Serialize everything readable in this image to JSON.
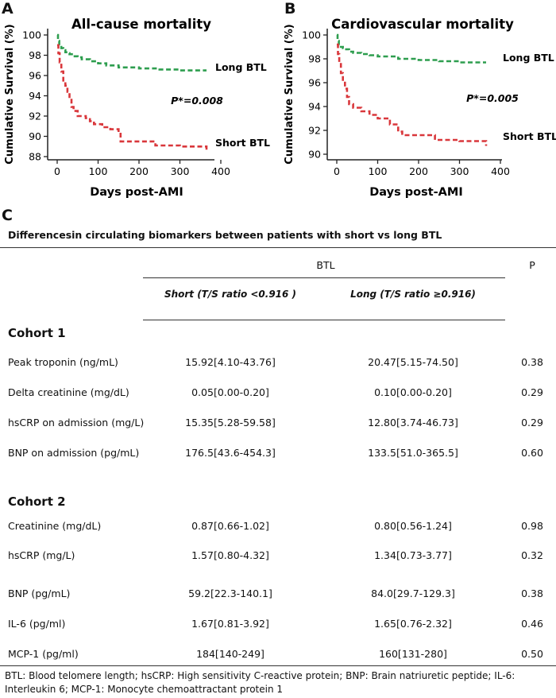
{
  "panels": [
    {
      "letter": "A",
      "chart_data": {
        "type": "line",
        "title": "All-cause mortality",
        "xlabel": "Days post-AMI",
        "ylabel": "Cumulative Survival (%)",
        "xlim": [
          -10,
          410
        ],
        "ylim": [
          87.5,
          100.5
        ],
        "xticks": [
          0,
          100,
          200,
          300,
          400
        ],
        "yticks": [
          88,
          90,
          92,
          94,
          96,
          98,
          100
        ],
        "annotation": "P*=0.008",
        "series": [
          {
            "name": "Long BTL",
            "color": "#2e9e4f",
            "x": [
              0,
              2,
              5,
              10,
              15,
              20,
              25,
              30,
              40,
              50,
              60,
              80,
              100,
              120,
              150,
              200,
              250,
              300,
              365
            ],
            "y": [
              100,
              99.4,
              99.0,
              98.7,
              98.5,
              98.3,
              98.2,
              98.1,
              97.9,
              97.8,
              97.6,
              97.4,
              97.2,
              97.0,
              96.8,
              96.7,
              96.6,
              96.5,
              96.5
            ]
          },
          {
            "name": "Short BTL",
            "color": "#d9373b",
            "x": [
              0,
              3,
              6,
              10,
              15,
              20,
              25,
              30,
              35,
              40,
              50,
              70,
              80,
              90,
              110,
              130,
              150,
              155,
              240,
              300,
              365
            ],
            "y": [
              99.0,
              98.2,
              97.3,
              96.4,
              95.4,
              95.0,
              94.4,
              93.6,
              92.9,
              92.5,
              92.0,
              91.8,
              91.5,
              91.2,
              90.9,
              90.7,
              90.4,
              89.5,
              89.1,
              89.0,
              88.6
            ]
          }
        ]
      }
    },
    {
      "letter": "B",
      "chart_data": {
        "type": "line",
        "title": "Cardiovascular mortality",
        "xlabel": "Days post-AMI",
        "ylabel": "Cumulative Survival (%)",
        "xlim": [
          -10,
          410
        ],
        "ylim": [
          89.7,
          100.4
        ],
        "xticks": [
          0,
          100,
          200,
          300,
          400
        ],
        "yticks": [
          90,
          92,
          94,
          96,
          98,
          100
        ],
        "annotation": "P*=0.005",
        "series": [
          {
            "name": "Long BTL",
            "color": "#2e9e4f",
            "x": [
              0,
              2,
              5,
              10,
              15,
              20,
              30,
              40,
              60,
              80,
              100,
              150,
              200,
              250,
              300,
              365
            ],
            "y": [
              100,
              99.5,
              99.2,
              99.0,
              98.9,
              98.8,
              98.6,
              98.5,
              98.4,
              98.3,
              98.2,
              98.0,
              97.9,
              97.8,
              97.7,
              97.7
            ]
          },
          {
            "name": "Short BTL",
            "color": "#d9373b",
            "x": [
              0,
              3,
              6,
              10,
              15,
              20,
              25,
              30,
              40,
              60,
              80,
              100,
              130,
              150,
              160,
              240,
              300,
              365
            ],
            "y": [
              99.2,
              98.4,
              97.7,
              96.8,
              96.1,
              95.5,
              94.8,
              94.2,
              93.9,
              93.6,
              93.3,
              93.0,
              92.5,
              91.9,
              91.6,
              91.2,
              91.1,
              90.7
            ]
          }
        ]
      }
    }
  ],
  "section_c": {
    "letter": "C",
    "caption": "Differencesin circulating biomarkers between patients with short vs long BTL",
    "headers": {
      "group": "BTL",
      "p": "P",
      "short": "Short (T/S ratio <0.916 )",
      "long": "Long (T/S ratio ≥0.916)"
    },
    "cohorts": [
      {
        "title": "Cohort 1",
        "rows": [
          {
            "label": "Peak troponin (ng/mL)",
            "short": "15.92[4.10-43.76]",
            "long": "20.47[5.15-74.50]",
            "p": "0.38"
          },
          {
            "label": "Delta creatinine (mg/dL)",
            "short": "0.05[0.00-0.20]",
            "long": "0.10[0.00-0.20]",
            "p": "0.29"
          },
          {
            "label": "hsCRP on admission (mg/L)",
            "short": "15.35[5.28-59.58]",
            "long": "12.80[3.74-46.73]",
            "p": "0.29"
          },
          {
            "label": "BNP on admission (pg/mL)",
            "short": "176.5[43.6-454.3]",
            "long": "133.5[51.0-365.5]",
            "p": "0.60"
          }
        ]
      },
      {
        "title": "Cohort 2",
        "rows": [
          {
            "label": "Creatinine (mg/dL)",
            "short": "0.87[0.66-1.02]",
            "long": "0.80[0.56-1.24]",
            "p": "0.98"
          },
          {
            "label": "hsCRP (mg/L)",
            "short": "1.57[0.80-4.32]",
            "long": "1.34[0.73-3.77]",
            "p": "0.32"
          },
          {
            "label": "BNP (pg/mL)",
            "short": "59.2[22.3-140.1]",
            "long": "84.0[29.7-129.3]",
            "p": "0.38"
          },
          {
            "label": "IL-6 (pg/ml)",
            "short": "1.67[0.81-3.92]",
            "long": "1.65[0.76-2.32]",
            "p": "0.46"
          },
          {
            "label": "MCP-1 (pg/ml)",
            "short": "184[140-249]",
            "long": "160[131-280]",
            "p": "0.50"
          }
        ]
      }
    ],
    "footnote": "BTL: Blood telomere length; hsCRP: High sensitivity C-reactive protein; BNP: Brain natriuretic peptide; IL-6: Interleukin 6; MCP-1: Monocyte chemoattractant protein 1"
  }
}
